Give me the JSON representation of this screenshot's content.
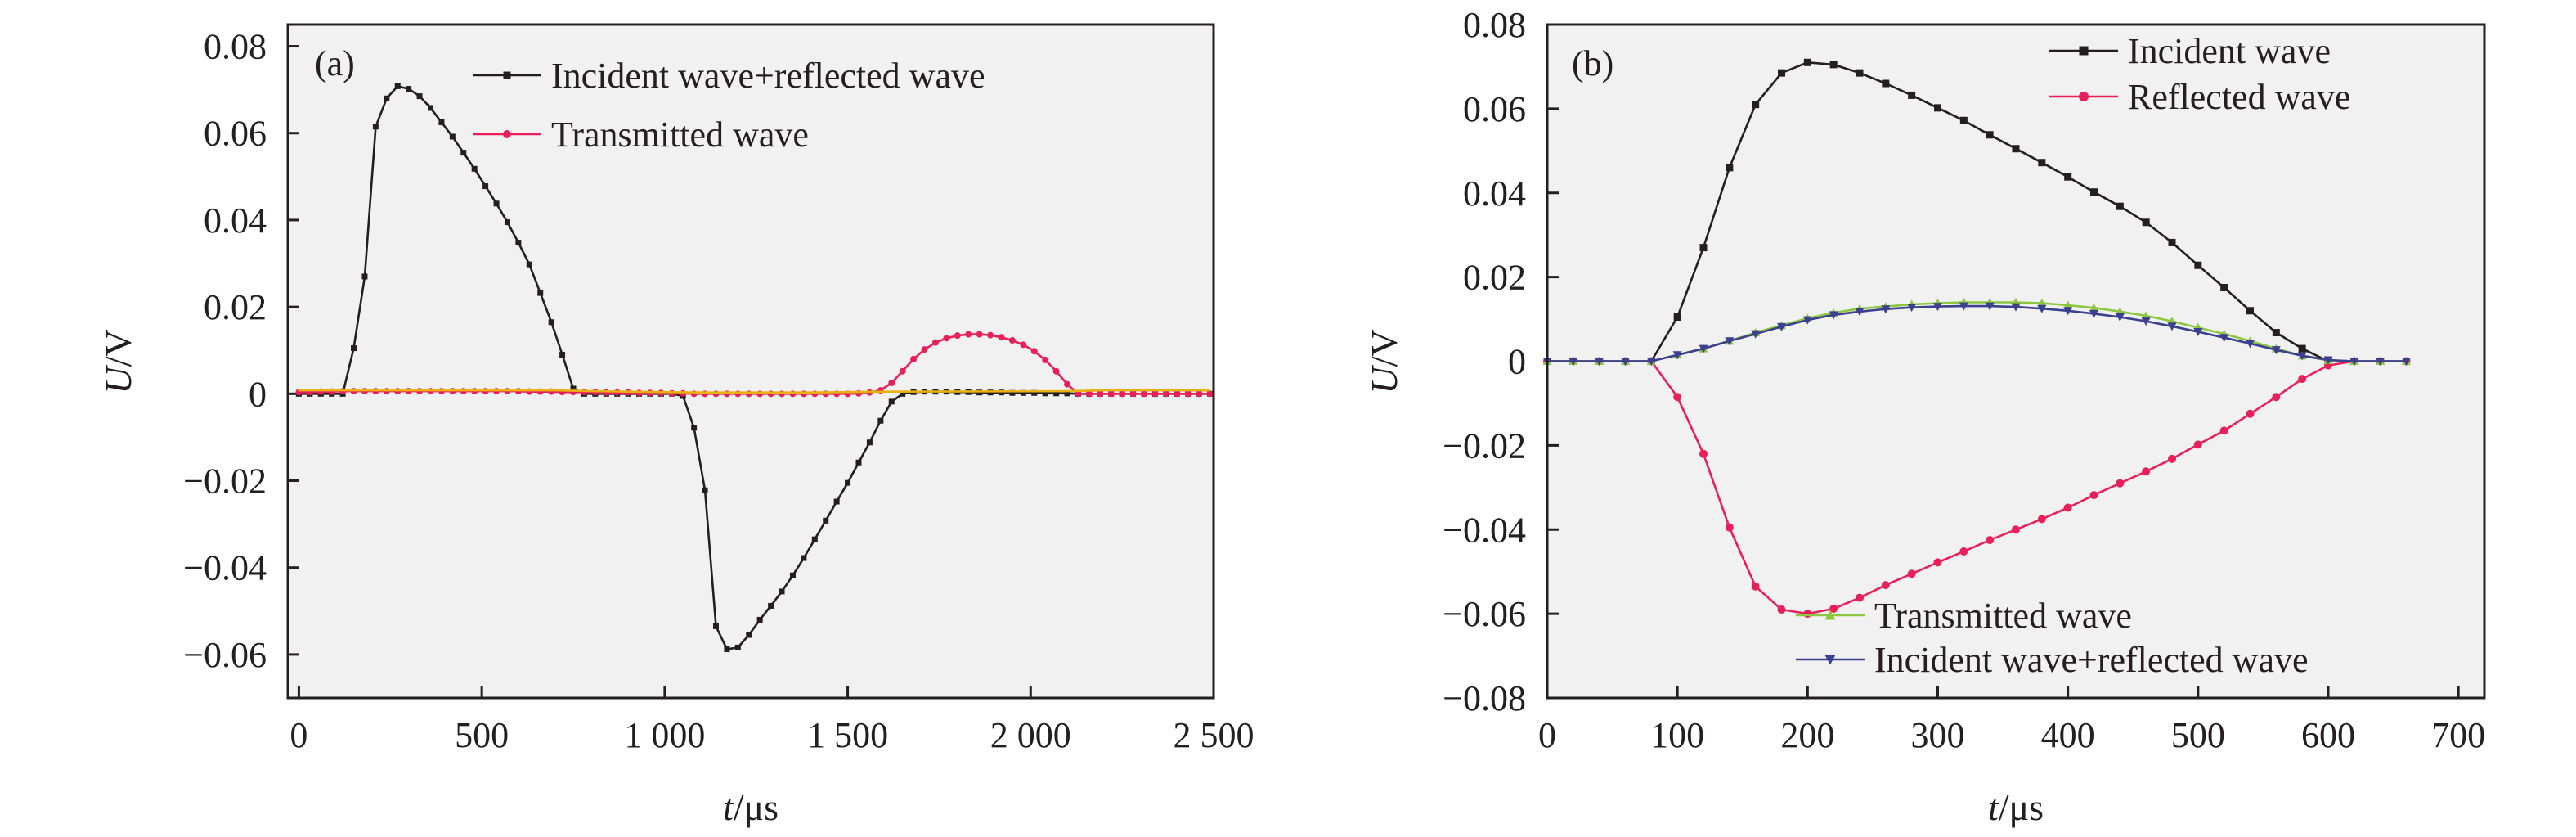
{
  "chart_data": [
    {
      "panel": "(a)",
      "type": "line",
      "xlabel_italic": "t",
      "xlabel_unit": "/μs",
      "ylabel_italic": "U",
      "ylabel_unit": "/V",
      "xlim": [
        -30,
        2500
      ],
      "ylim": [
        -0.07,
        0.085
      ],
      "xticks": [
        0,
        500,
        1000,
        1500,
        2000,
        2500
      ],
      "xtick_labels": [
        "0",
        "500",
        "1 000",
        "1 500",
        "2 000",
        "2 500"
      ],
      "yticks": [
        -0.06,
        -0.04,
        -0.02,
        0,
        0.02,
        0.04,
        0.06,
        0.08
      ],
      "ytick_labels": [
        "−0.06",
        "−0.04",
        "−0.02",
        "0",
        "0.02",
        "0.04",
        "0.06",
        "0.08"
      ],
      "grid": false,
      "legend_position": "top-center",
      "series": [
        {
          "name": "Incident wave+reflected wave",
          "color": "#231f20",
          "marker": "square",
          "x": [
            0,
            30,
            60,
            90,
            120,
            150,
            180,
            210,
            240,
            270,
            300,
            330,
            360,
            390,
            420,
            450,
            480,
            510,
            540,
            570,
            600,
            630,
            660,
            690,
            720,
            750,
            780,
            810,
            840,
            870,
            900,
            930,
            960,
            990,
            1020,
            1050,
            1080,
            1110,
            1140,
            1170,
            1200,
            1230,
            1260,
            1290,
            1320,
            1350,
            1380,
            1410,
            1440,
            1470,
            1500,
            1530,
            1560,
            1590,
            1620,
            1650,
            1680,
            1710,
            1740,
            1770,
            1800,
            1830,
            1860,
            1890,
            1920,
            1950,
            1980,
            2010,
            2040,
            2070,
            2100,
            2130,
            2160,
            2190,
            2220,
            2250,
            2280,
            2310,
            2340,
            2370,
            2400,
            2430,
            2460,
            2490
          ],
          "y": [
            0,
            0,
            0,
            0,
            0,
            0.0105,
            0.027,
            0.0615,
            0.068,
            0.0708,
            0.0702,
            0.0685,
            0.0658,
            0.0625,
            0.0592,
            0.0555,
            0.0518,
            0.0478,
            0.0438,
            0.0395,
            0.0348,
            0.0298,
            0.0232,
            0.0165,
            0.009,
            0.0012,
            0,
            0,
            0,
            0,
            0,
            0,
            0,
            0,
            0,
            -0.0005,
            -0.0078,
            -0.0222,
            -0.0535,
            -0.0588,
            -0.0584,
            -0.0555,
            -0.052,
            -0.0488,
            -0.0455,
            -0.0418,
            -0.0378,
            -0.0335,
            -0.0292,
            -0.0248,
            -0.0205,
            -0.0158,
            -0.0112,
            -0.0062,
            -0.0018,
            0,
            0.0004,
            0.0005,
            0.0005,
            0.0005,
            0.0004,
            0.0004,
            0.0003,
            0.0003,
            0.0003,
            0.0002,
            0.0002,
            0.0002,
            0.0001,
            0.0001,
            0.0001,
            0,
            0,
            0,
            0,
            0,
            0,
            0,
            0,
            0,
            0,
            0,
            0,
            0
          ]
        },
        {
          "name": "Transmitted wave",
          "color": "#e8205a",
          "marker": "circle",
          "x": [
            0,
            30,
            60,
            90,
            120,
            150,
            180,
            210,
            240,
            270,
            300,
            330,
            360,
            390,
            420,
            450,
            480,
            510,
            540,
            570,
            600,
            630,
            660,
            690,
            720,
            750,
            780,
            810,
            840,
            870,
            900,
            930,
            960,
            990,
            1020,
            1050,
            1080,
            1110,
            1140,
            1170,
            1200,
            1230,
            1260,
            1290,
            1320,
            1350,
            1380,
            1410,
            1440,
            1470,
            1500,
            1530,
            1560,
            1590,
            1620,
            1650,
            1680,
            1710,
            1740,
            1770,
            1800,
            1830,
            1860,
            1890,
            1920,
            1950,
            1980,
            2010,
            2040,
            2070,
            2100,
            2130,
            2160,
            2190,
            2220,
            2250,
            2280,
            2310,
            2340,
            2370,
            2400,
            2430,
            2460,
            2490
          ],
          "y": [
            0.0004,
            0.0004,
            0.0005,
            0.0005,
            0.0006,
            0.0006,
            0.0006,
            0.0006,
            0.0006,
            0.0006,
            0.0006,
            0.0006,
            0.0006,
            0.0006,
            0.0006,
            0.0006,
            0.0006,
            0.0006,
            0.0006,
            0.0006,
            0.0006,
            0.0005,
            0.0005,
            0.0005,
            0.0004,
            0.0004,
            0.0004,
            0.0004,
            0.0003,
            0.0003,
            0.0003,
            0.0002,
            0.0002,
            0.0002,
            0.0001,
            0.0001,
            0,
            0,
            0,
            0,
            0,
            0,
            0,
            0,
            0,
            0,
            0,
            0,
            0,
            0,
            0,
            0.0001,
            0.0003,
            0.0008,
            0.0025,
            0.0052,
            0.008,
            0.0102,
            0.0118,
            0.0128,
            0.0134,
            0.0137,
            0.0137,
            0.0135,
            0.013,
            0.0123,
            0.0113,
            0.0098,
            0.0078,
            0.0052,
            0.0022,
            0,
            0,
            0,
            0,
            0,
            0,
            0,
            0,
            0,
            0,
            0,
            0,
            0
          ]
        },
        {
          "color": "#e8b010",
          "marker": "none",
          "x": [
            0,
            100,
            200,
            300,
            400,
            500,
            600,
            700,
            800,
            900,
            1000,
            1100,
            1200,
            1300,
            1400,
            1500,
            1600,
            2100,
            2200,
            2300,
            2400,
            2490
          ],
          "y": [
            0.0008,
            0.0008,
            0.0008,
            0.0008,
            0.0008,
            0.0008,
            0.0008,
            0.0008,
            0.0006,
            0.0005,
            0.0004,
            0.0003,
            0.0003,
            0.0003,
            0.0003,
            0.0004,
            0.0005,
            0.0006,
            0.0008,
            0.0008,
            0.0008,
            0.0008
          ]
        }
      ]
    },
    {
      "panel": "(b)",
      "type": "line",
      "xlabel_italic": "t",
      "xlabel_unit": "/μs",
      "ylabel_italic": "U",
      "ylabel_unit": "/V",
      "xlim": [
        0,
        720
      ],
      "ylim": [
        -0.08,
        0.08
      ],
      "xticks": [
        0,
        100,
        200,
        300,
        400,
        500,
        600,
        700
      ],
      "xtick_labels": [
        "0",
        "100",
        "200",
        "300",
        "400",
        "500",
        "600",
        "700"
      ],
      "yticks": [
        -0.08,
        -0.06,
        -0.04,
        -0.02,
        0,
        0.02,
        0.04,
        0.06,
        0.08
      ],
      "ytick_labels": [
        "−0.08",
        "−0.06",
        "−0.04",
        "−0.02",
        "0",
        "0.02",
        "0.04",
        "0.06",
        "0.08"
      ],
      "grid": false,
      "legend_position": "top-right and bottom-right",
      "series": [
        {
          "name": "Incident wave",
          "color": "#231f20",
          "marker": "square",
          "x": [
            0,
            20,
            40,
            60,
            80,
            100,
            120,
            140,
            160,
            180,
            200,
            220,
            240,
            260,
            280,
            300,
            320,
            340,
            360,
            380,
            400,
            420,
            440,
            460,
            480,
            500,
            520,
            540,
            560,
            580,
            600,
            620,
            640,
            660
          ],
          "y": [
            0,
            0,
            0,
            0,
            0,
            0.0105,
            0.027,
            0.046,
            0.061,
            0.0685,
            0.071,
            0.0705,
            0.0685,
            0.066,
            0.0632,
            0.0602,
            0.0572,
            0.0538,
            0.0505,
            0.0472,
            0.0438,
            0.0402,
            0.0368,
            0.033,
            0.0282,
            0.0228,
            0.0175,
            0.012,
            0.0068,
            0.003,
            0,
            0,
            0,
            0
          ]
        },
        {
          "name": "Reflected wave",
          "color": "#e8205a",
          "marker": "circle",
          "x": [
            0,
            20,
            40,
            60,
            80,
            100,
            120,
            140,
            160,
            180,
            200,
            220,
            240,
            260,
            280,
            300,
            320,
            340,
            360,
            380,
            400,
            420,
            440,
            460,
            480,
            500,
            520,
            540,
            560,
            580,
            600,
            620,
            640,
            660
          ],
          "y": [
            0,
            0,
            0,
            0,
            0,
            -0.0085,
            -0.022,
            -0.0395,
            -0.0535,
            -0.059,
            -0.06,
            -0.0588,
            -0.0562,
            -0.0532,
            -0.0505,
            -0.0478,
            -0.0452,
            -0.0425,
            -0.04,
            -0.0375,
            -0.0348,
            -0.0318,
            -0.029,
            -0.0262,
            -0.0232,
            -0.0198,
            -0.0165,
            -0.0125,
            -0.0085,
            -0.0042,
            -0.001,
            0,
            0,
            0
          ]
        },
        {
          "name": "Transmitted wave",
          "color": "#8dc63f",
          "marker": "triangle-up",
          "x": [
            0,
            20,
            40,
            60,
            80,
            100,
            120,
            140,
            160,
            180,
            200,
            220,
            240,
            260,
            280,
            300,
            320,
            340,
            360,
            380,
            400,
            420,
            440,
            460,
            480,
            500,
            520,
            540,
            560,
            580,
            600,
            620,
            640,
            660
          ],
          "y": [
            0,
            0,
            0,
            0,
            0,
            0.0015,
            0.003,
            0.0048,
            0.0068,
            0.0085,
            0.0102,
            0.0115,
            0.0125,
            0.013,
            0.0135,
            0.0138,
            0.014,
            0.014,
            0.014,
            0.0138,
            0.0133,
            0.0127,
            0.0118,
            0.0108,
            0.0095,
            0.008,
            0.0065,
            0.0048,
            0.003,
            0.0013,
            0.0002,
            0,
            0,
            0
          ]
        },
        {
          "name": "Incident wave+reflected wave",
          "color": "#3b3f8f",
          "marker": "triangle-down",
          "x": [
            0,
            20,
            40,
            60,
            80,
            100,
            120,
            140,
            160,
            180,
            200,
            220,
            240,
            260,
            280,
            300,
            320,
            340,
            360,
            380,
            400,
            420,
            440,
            460,
            480,
            500,
            520,
            540,
            560,
            580,
            600,
            620,
            640,
            660
          ],
          "y": [
            0,
            0,
            0,
            0,
            0,
            0.0015,
            0.003,
            0.0048,
            0.0065,
            0.0082,
            0.0098,
            0.011,
            0.0118,
            0.0124,
            0.0128,
            0.013,
            0.0131,
            0.0131,
            0.0129,
            0.0125,
            0.012,
            0.0113,
            0.0105,
            0.0095,
            0.0083,
            0.007,
            0.0056,
            0.0042,
            0.0027,
            0.0013,
            0.0003,
            0,
            0,
            0
          ]
        }
      ]
    }
  ]
}
